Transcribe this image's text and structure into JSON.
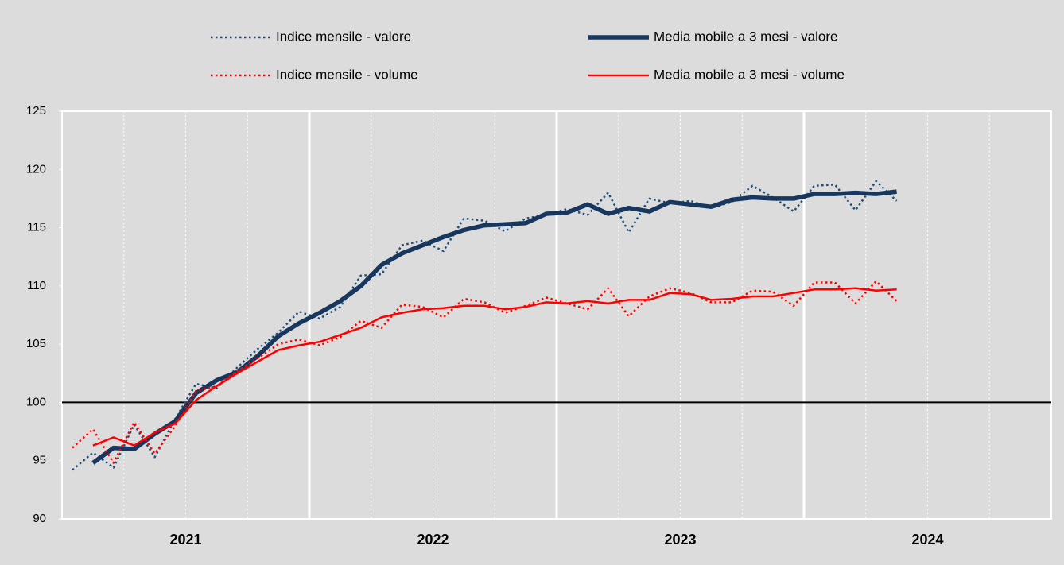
{
  "chart_data": {
    "type": "line",
    "categories": [
      null,
      null,
      null,
      null,
      null,
      null,
      null,
      null,
      null,
      null,
      null,
      null,
      null,
      null,
      null,
      null,
      null,
      null,
      null,
      null,
      null,
      null,
      null,
      null,
      null,
      null,
      null,
      null,
      null,
      null,
      null,
      null,
      null,
      null,
      null,
      null,
      null,
      null,
      null,
      null,
      null
    ],
    "year_labels": [
      "2021",
      "2022",
      "2023",
      "2024"
    ],
    "ylim": [
      90,
      125
    ],
    "yticks": [
      90,
      95,
      100,
      105,
      110,
      115,
      120,
      125
    ],
    "hline": 100,
    "series": [
      {
        "name": "Indice mensile - valore",
        "color": "#1f4e79",
        "style": "dotted",
        "width": 2.5,
        "values": [
          94.2,
          95.7,
          94.4,
          98.1,
          95.3,
          98.6,
          101.6,
          101.2,
          103.0,
          104.6,
          106.0,
          107.8,
          107.2,
          108.2,
          110.9,
          111.0,
          113.5,
          113.9,
          113.0,
          115.8,
          115.6,
          114.7,
          115.8,
          116.1,
          116.6,
          116.1,
          118.0,
          114.6,
          117.5,
          117.1,
          117.3,
          116.7,
          117.2,
          118.6,
          117.6,
          116.4,
          118.6,
          118.7,
          116.5,
          119.0,
          117.3
        ]
      },
      {
        "name": "Media mobile a 3 mesi - valore",
        "color": "#17375e",
        "style": "solid",
        "width": 5.5,
        "values": [
          null,
          94.8,
          96.1,
          96.0,
          97.3,
          98.4,
          100.8,
          101.9,
          102.6,
          104.0,
          105.7,
          106.8,
          107.7,
          108.7,
          110.0,
          111.8,
          112.8,
          113.5,
          114.2,
          114.8,
          115.2,
          115.3,
          115.4,
          116.2,
          116.3,
          117.0,
          116.2,
          116.7,
          116.4,
          117.2,
          117.0,
          116.8,
          117.4,
          117.6,
          117.5,
          117.5,
          117.9,
          117.9,
          118.0,
          117.9,
          118.1
        ]
      },
      {
        "name": "Indice mensile - volume",
        "color": "#ff0000",
        "style": "dotted",
        "width": 2.5,
        "values": [
          96.1,
          97.7,
          94.8,
          98.3,
          95.6,
          98.0,
          101.0,
          101.4,
          102.7,
          103.8,
          105.0,
          105.4,
          104.9,
          105.6,
          107.0,
          106.4,
          108.4,
          108.2,
          107.3,
          108.9,
          108.6,
          107.7,
          108.3,
          109.0,
          108.5,
          108.0,
          109.8,
          107.4,
          109.1,
          109.8,
          109.4,
          108.6,
          108.6,
          109.6,
          109.5,
          108.3,
          110.3,
          110.3,
          108.5,
          110.4,
          108.7
        ]
      },
      {
        "name": "Media mobile a 3 mesi - volume",
        "color": "#ff0000",
        "style": "solid",
        "width": 2.5,
        "values": [
          null,
          96.3,
          97.0,
          96.3,
          97.4,
          98.2,
          100.2,
          101.4,
          102.5,
          103.5,
          104.5,
          104.9,
          105.2,
          105.8,
          106.4,
          107.3,
          107.7,
          108.0,
          108.1,
          108.3,
          108.3,
          108.0,
          108.2,
          108.6,
          108.5,
          108.7,
          108.5,
          108.8,
          108.8,
          109.4,
          109.3,
          108.8,
          108.9,
          109.1,
          109.1,
          109.4,
          109.7,
          109.7,
          109.8,
          109.6,
          109.7
        ]
      }
    ]
  }
}
